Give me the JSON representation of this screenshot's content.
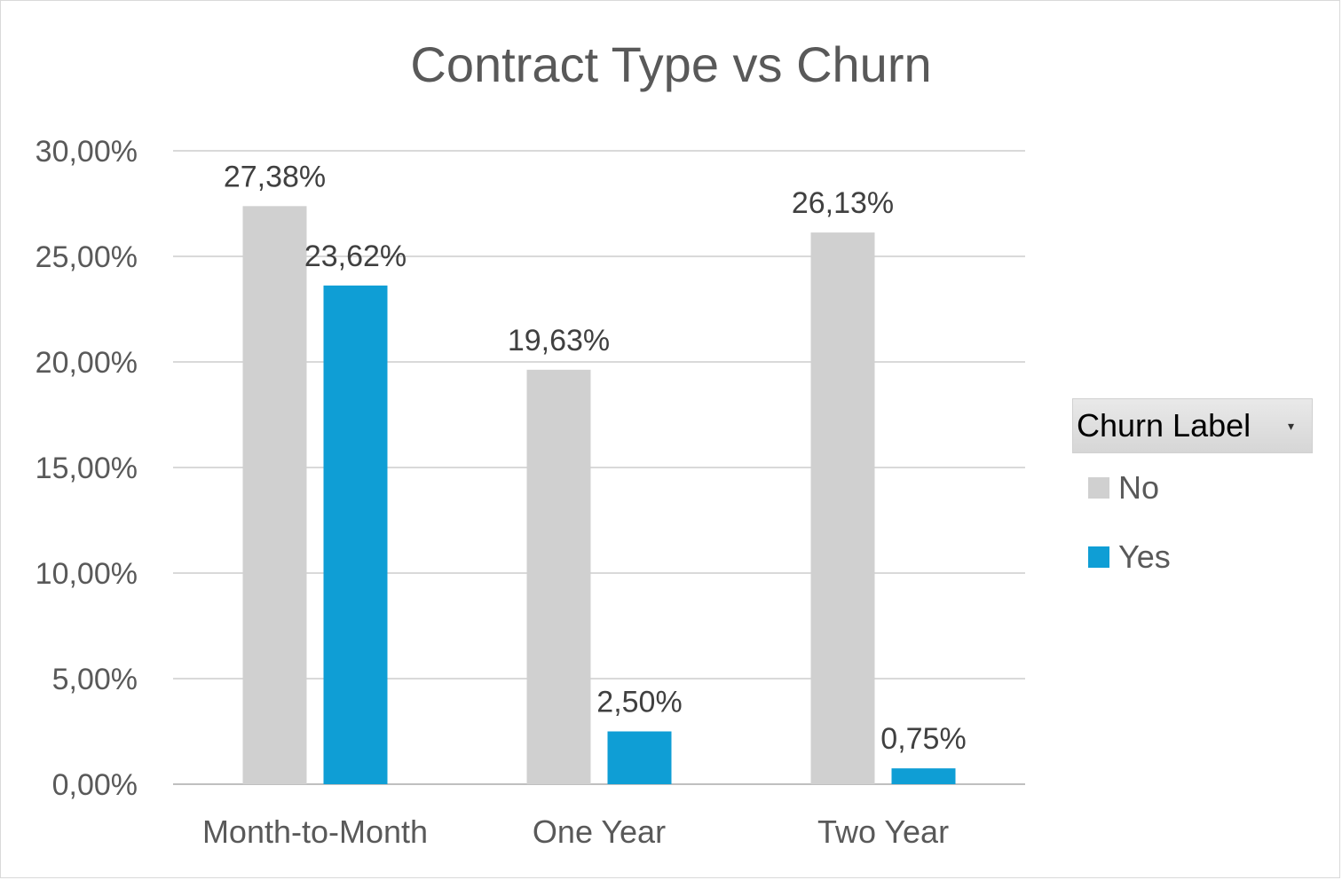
{
  "chart_data": {
    "type": "bar",
    "title": "Contract Type vs Churn",
    "categories": [
      "Month-to-Month",
      "One Year",
      "Two Year"
    ],
    "series": [
      {
        "name": "No",
        "values": [
          27.38,
          19.63,
          26.13
        ],
        "labels": [
          "27,38%",
          "19,63%",
          "26,13%"
        ],
        "color": "#d0d0d0"
      },
      {
        "name": "Yes",
        "values": [
          23.62,
          2.5,
          0.75
        ],
        "labels": [
          "23,62%",
          "2,50%",
          "0,75%"
        ],
        "color": "#0f9ed5"
      }
    ],
    "yticks": [
      "0,00%",
      "5,00%",
      "10,00%",
      "15,00%",
      "20,00%",
      "25,00%",
      "30,00%"
    ],
    "ylim": [
      0,
      30
    ],
    "grid": true,
    "legend": {
      "title": "Churn Label",
      "placement": "right",
      "icon": "chevron-down-icon"
    }
  }
}
